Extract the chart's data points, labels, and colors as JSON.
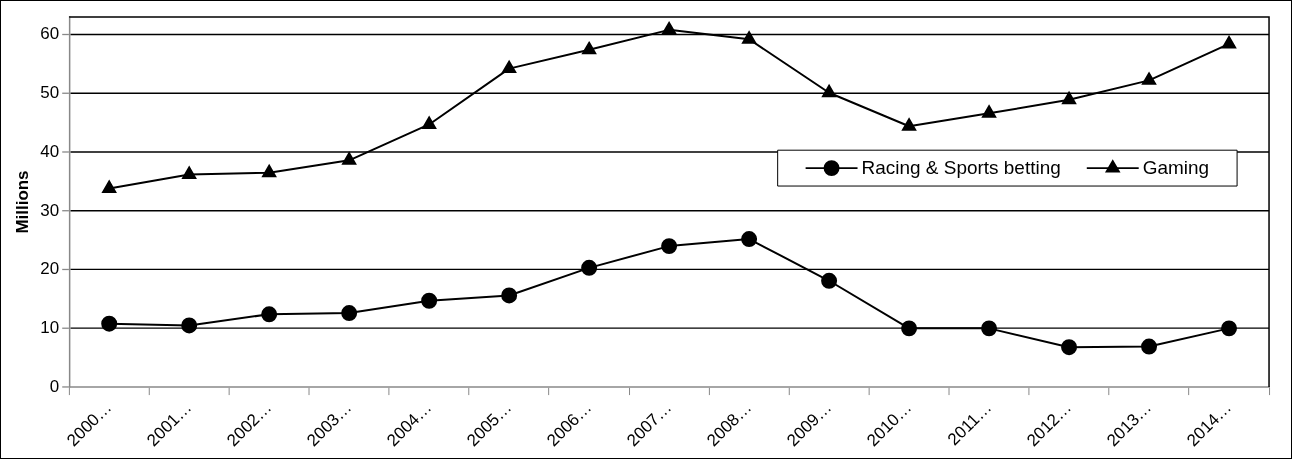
{
  "chart_data": {
    "type": "line",
    "ylabel": "Millions",
    "categories": [
      "2000…",
      "2001…",
      "2002…",
      "2003…",
      "2004…",
      "2005…",
      "2006…",
      "2007…",
      "2008…",
      "2009…",
      "2010…",
      "2011…",
      "2012…",
      "2013…",
      "2014…"
    ],
    "series": [
      {
        "name": "Racing & Sports betting",
        "color": "#000000",
        "marker": "circle",
        "values": [
          10.8,
          10.5,
          12.4,
          12.6,
          14.7,
          15.6,
          20.3,
          24.0,
          25.2,
          18.1,
          10.0,
          10.0,
          6.8,
          6.9,
          10.0
        ]
      },
      {
        "name": "Gaming",
        "color": "#000000",
        "marker": "triangle",
        "values": [
          33.8,
          36.2,
          36.5,
          38.6,
          44.7,
          54.2,
          57.4,
          60.8,
          59.2,
          50.1,
          44.4,
          46.6,
          48.9,
          52.2,
          58.4
        ]
      }
    ],
    "ylim": [
      0,
      63
    ],
    "yticks": [
      0,
      10,
      20,
      30,
      40,
      50,
      60
    ],
    "grid": "y",
    "legend": "right",
    "line_style": "solid"
  }
}
